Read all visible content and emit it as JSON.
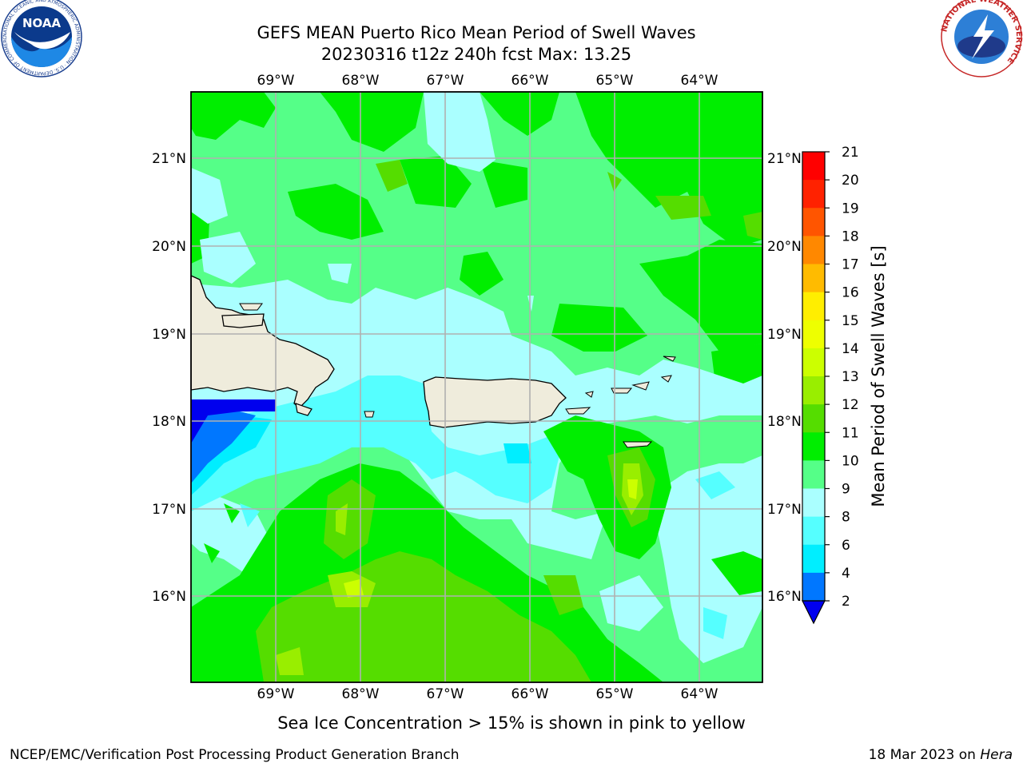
{
  "title": {
    "line1": "GEFS MEAN Puerto Rico Mean Period of Swell Waves",
    "line2": "20230316 t12z 240h fcst   Max: 13.25"
  },
  "logos": {
    "noaa_text": "NOAA",
    "noaa_ring": "NATIONAL OCEANIC AND ATMOSPHERIC ADMINISTRATION · U.S. DEPARTMENT OF COMMERCE",
    "nws_ring": "NATIONAL WEATHER SERVICE"
  },
  "map": {
    "lon_labels": [
      "69°W",
      "68°W",
      "67°W",
      "66°W",
      "65°W",
      "64°W"
    ],
    "lat_labels": [
      "21°N",
      "20°N",
      "19°N",
      "18°N",
      "17°N",
      "16°N"
    ],
    "land_color": "#efecdc",
    "grid_color": "#b0b0b0"
  },
  "colorbar": {
    "label": "Mean Period of Swell Waves [s]",
    "ticks": [
      "2",
      "4",
      "6",
      "8",
      "9",
      "10",
      "11",
      "12",
      "13",
      "14",
      "15",
      "16",
      "17",
      "18",
      "19",
      "20",
      "21"
    ],
    "colors": [
      "#0000ee",
      "#0077ff",
      "#00eeff",
      "#55ffff",
      "#aaffff",
      "#55ff88",
      "#00ee00",
      "#55dd00",
      "#99ee00",
      "#ccff00",
      "#eeff00",
      "#ffee00",
      "#ffbb00",
      "#ff8800",
      "#ff5500",
      "#ff2200",
      "#ff0000"
    ]
  },
  "note": "Sea Ice Concentration > 15% is shown in pink to yellow",
  "footer": {
    "left": "NCEP/EMC/Verification Post Processing Product Generation Branch",
    "date": "18 Mar 2023 on ",
    "machine": "Hera"
  }
}
